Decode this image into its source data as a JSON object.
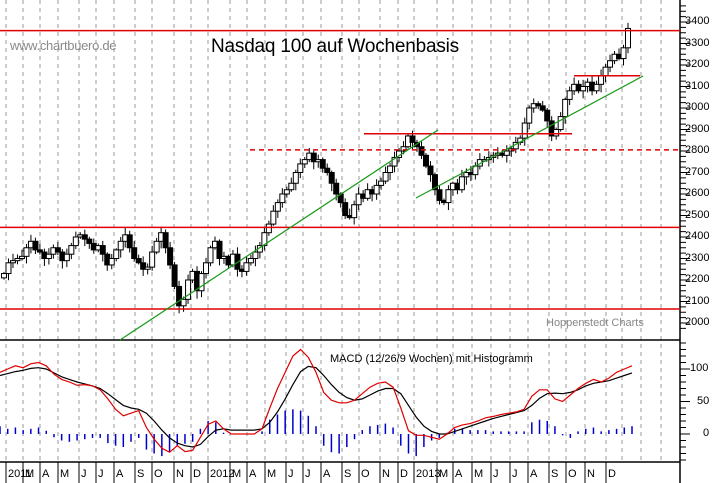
{
  "header": {
    "watermark": "www.chartbuero.de",
    "title": "Nasdaq 100 auf Wochenbasis",
    "credit": "Hoppenstedt Charts"
  },
  "macd_panel": {
    "label": "MACD (12/26/9 Wochen) mit Histogramm"
  },
  "colors": {
    "up_candle": "#ffffff",
    "down_candle": "#000000",
    "resistance_line": "#e00000",
    "trend_line": "#1a9a1a",
    "macd_line": "#e00000",
    "signal_line": "#000000",
    "histogram": "#0000cc",
    "grid": "#9a9a9a"
  },
  "chart_data": [
    {
      "type": "candlestick",
      "title": "Nasdaq 100 auf Wochenbasis",
      "xlabel": "",
      "ylabel": "",
      "ylim": [
        1950,
        3480
      ],
      "yticks": [
        2000,
        2100,
        2200,
        2300,
        2400,
        2500,
        2600,
        2700,
        2800,
        2900,
        3000,
        3100,
        3200,
        3300,
        3400
      ],
      "x_month_labels": [
        "2011",
        "M",
        "A",
        "M",
        "J",
        "J",
        "A",
        "S",
        "O",
        "N",
        "D",
        "2012",
        "M",
        "A",
        "M",
        "J",
        "J",
        "A",
        "S",
        "O",
        "N",
        "D",
        "2013",
        "M",
        "A",
        "M",
        "J",
        "J",
        "A",
        "S",
        "O",
        "N",
        "D"
      ],
      "grid": true,
      "close_series_weekly": [
        2230,
        2280,
        2290,
        2300,
        2310,
        2350,
        2380,
        2340,
        2330,
        2300,
        2320,
        2350,
        2330,
        2290,
        2320,
        2360,
        2400,
        2410,
        2390,
        2370,
        2340,
        2360,
        2320,
        2270,
        2300,
        2340,
        2380,
        2410,
        2350,
        2300,
        2280,
        2250,
        2260,
        2330,
        2380,
        2420,
        2350,
        2270,
        2170,
        2080,
        2110,
        2200,
        2240,
        2150,
        2230,
        2280,
        2350,
        2380,
        2300,
        2310,
        2270,
        2320,
        2250,
        2240,
        2280,
        2300,
        2330,
        2360,
        2420,
        2460,
        2520,
        2560,
        2600,
        2620,
        2650,
        2700,
        2740,
        2760,
        2790,
        2750,
        2760,
        2720,
        2700,
        2650,
        2600,
        2560,
        2500,
        2490,
        2550,
        2600,
        2580,
        2620,
        2600,
        2640,
        2660,
        2700,
        2730,
        2770,
        2800,
        2820,
        2870,
        2840,
        2820,
        2780,
        2730,
        2690,
        2620,
        2570,
        2560,
        2620,
        2650,
        2620,
        2680,
        2700,
        2690,
        2730,
        2760,
        2760,
        2770,
        2780,
        2790,
        2780,
        2800,
        2810,
        2840,
        2860,
        2930,
        3000,
        3020,
        3010,
        2990,
        2940,
        2870,
        2900,
        2960,
        3040,
        3080,
        3110,
        3080,
        3100,
        3120,
        3080,
        3110,
        3150,
        3190,
        3220,
        3250,
        3230,
        3280,
        3370
      ],
      "horizontal_lines": [
        {
          "level": 3360,
          "style": "solid",
          "color": "red"
        },
        {
          "level": 2880,
          "style": "solid",
          "color": "red",
          "x_from": 364,
          "x_to": 572
        },
        {
          "level": 2805,
          "style": "dashed",
          "color": "red",
          "x_from": 250
        },
        {
          "level": 2445,
          "style": "solid",
          "color": "red"
        },
        {
          "level": 2065,
          "style": "solid",
          "color": "red"
        },
        {
          "level": 3150,
          "style": "solid",
          "color": "red",
          "x_from": 574,
          "x_to": 640
        }
      ],
      "trend_lines": [
        {
          "from": [
            120,
            340
          ],
          "to": [
            438,
            130
          ],
          "color": "green"
        },
        {
          "from": [
            416,
            198
          ],
          "to": [
            643,
            76
          ],
          "color": "green"
        }
      ]
    },
    {
      "type": "line",
      "title": "MACD (12/26/9 Wochen) mit Histogramm",
      "ylim": [
        -60,
        150
      ],
      "yticks": [
        0,
        50,
        100
      ],
      "series": [
        {
          "name": "MACD",
          "color": "red",
          "values": [
            95,
            100,
            105,
            102,
            108,
            110,
            105,
            92,
            84,
            80,
            75,
            76,
            74,
            68,
            54,
            38,
            28,
            32,
            36,
            10,
            -8,
            -22,
            -28,
            -18,
            -27,
            -25,
            -5,
            15,
            20,
            8,
            0,
            0,
            0,
            0,
            8,
            40,
            70,
            95,
            120,
            130,
            118,
            95,
            64,
            52,
            48,
            48,
            52,
            62,
            72,
            78,
            80,
            72,
            40,
            5,
            -2,
            -2,
            -5,
            -8,
            0,
            10,
            14,
            16,
            20,
            25,
            27,
            30,
            32,
            34,
            38,
            58,
            68,
            68,
            54,
            50,
            60,
            70,
            78,
            84,
            80,
            86,
            95,
            100,
            105
          ]
        },
        {
          "name": "Signal",
          "color": "black",
          "values": [
            90,
            93,
            96,
            98,
            101,
            102,
            100,
            94,
            88,
            84,
            80,
            77,
            74,
            70,
            62,
            53,
            44,
            40,
            38,
            32,
            20,
            6,
            -6,
            -14,
            -18,
            -20,
            -16,
            -4,
            6,
            8,
            6,
            6,
            6,
            6,
            8,
            18,
            34,
            54,
            76,
            96,
            104,
            102,
            90,
            76,
            64,
            56,
            52,
            54,
            60,
            66,
            70,
            70,
            62,
            44,
            26,
            12,
            4,
            0,
            0,
            4,
            8,
            12,
            16,
            20,
            24,
            27,
            30,
            33,
            36,
            44,
            55,
            62,
            63,
            62,
            64,
            68,
            74,
            78,
            80,
            82,
            86,
            90,
            94
          ]
        }
      ],
      "histogram": [
        12,
        8,
        10,
        6,
        8,
        10,
        5,
        -5,
        -10,
        -12,
        -10,
        -8,
        -6,
        -6,
        -14,
        -18,
        -20,
        -12,
        -6,
        -24,
        -30,
        -34,
        -28,
        -18,
        -15,
        -12,
        8,
        20,
        18,
        2,
        0,
        0,
        0,
        0,
        4,
        22,
        30,
        36,
        38,
        36,
        28,
        12,
        -18,
        -28,
        -30,
        -20,
        -8,
        6,
        12,
        14,
        16,
        10,
        -18,
        -30,
        -34,
        -20,
        -10,
        -6,
        2,
        8,
        8,
        6,
        6,
        6,
        4,
        4,
        4,
        4,
        4,
        18,
        22,
        20,
        12,
        -2,
        -6,
        4,
        8,
        10,
        4,
        6,
        8,
        10,
        12
      ]
    }
  ]
}
